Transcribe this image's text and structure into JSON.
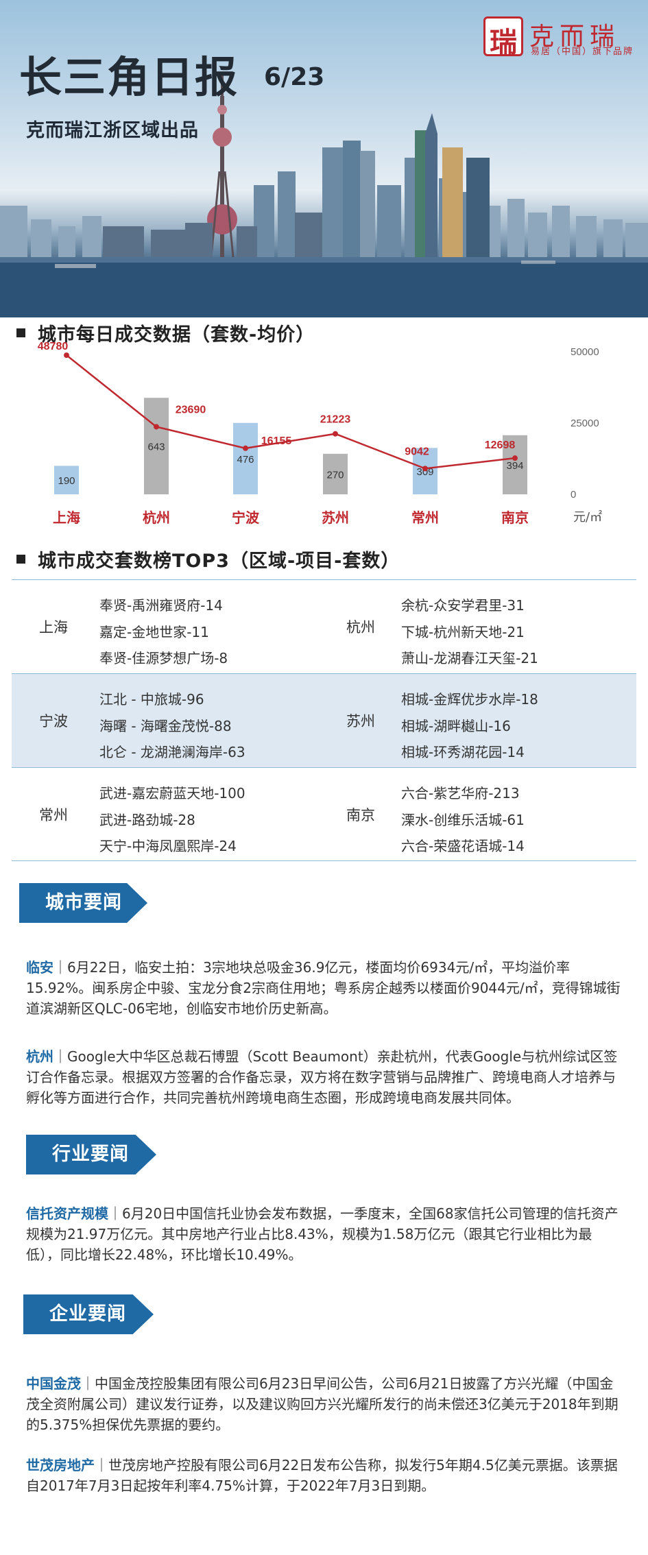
{
  "banner": {
    "title": "长三角日报",
    "date": "6/23",
    "subtitle": "克而瑞江浙区域出品",
    "logo_glyph": "瑞",
    "logo_name": "克而瑞",
    "logo_tag": "易居（中国）旗下品牌"
  },
  "colors": {
    "accent_blue": "#1f6aa5",
    "bar_blue": "#a9cbe8",
    "bar_gray": "#b3b3b3",
    "line_red": "#c0282f"
  },
  "section_daily": {
    "title": "城市每日成交数据（套数-均价）"
  },
  "chart_data": {
    "type": "bar",
    "categories": [
      "上海",
      "杭州",
      "宁波",
      "苏州",
      "常州",
      "南京"
    ],
    "series": [
      {
        "values": [
          190,
          643,
          476,
          270,
          309,
          394
        ]
      },
      {
        "values": [
          48780,
          23690,
          16155,
          21223,
          9042,
          12698
        ]
      }
    ],
    "right_axis": {
      "ticks": [
        "50000",
        "25000",
        "0"
      ],
      "unit": "元/㎡",
      "ylim": [
        0,
        50000
      ]
    },
    "left_ylim": [
      0,
      950
    ]
  },
  "section_top3": {
    "title": "城市成交套数榜TOP3（区域-项目-套数）"
  },
  "top3": [
    {
      "left_city": "上海",
      "left_items": [
        "奉贤-禹洲雍贤府-14",
        "嘉定-金地世家-11",
        "奉贤-佳源梦想广场-8"
      ],
      "right_city": "杭州",
      "right_items": [
        "余杭-众安学君里-31",
        "下城-杭州新天地-21",
        "萧山-龙湖春江天玺-21"
      ]
    },
    {
      "left_city": "宁波",
      "left_items": [
        "江北 - 中旅城-96",
        "海曙 - 海曙金茂悦-88",
        "北仑 - 龙湖滟澜海岸-63"
      ],
      "right_city": "苏州",
      "right_items": [
        "相城-金辉优步水岸-18",
        "相城-湖畔樾山-16",
        "相城-环秀湖花园-14"
      ]
    },
    {
      "left_city": "常州",
      "left_items": [
        "武进-嘉宏蔚蓝天地-100",
        "武进-路劲城-28",
        "天宁-中海凤凰熙岸-24"
      ],
      "right_city": "南京",
      "right_items": [
        "六合-紫艺华府-213",
        "溧水-创维乐活城-61",
        "六合-荣盛花语城-14"
      ]
    }
  ],
  "news": {
    "city": {
      "tag": "城市要闻",
      "items": [
        {
          "keyword": "临安",
          "text": "｜6月22日，临安土拍：3宗地块总吸金36.9亿元，楼面均价6934元/㎡，平均溢价率15.92%。闽系房企中骏、宝龙分食2宗商住用地；粤系房企越秀以楼面价9044元/㎡，竞得锦城街道滨湖新区QLC-06宅地，创临安市地价历史新高。"
        },
        {
          "keyword": "杭州",
          "text": "｜Google大中华区总裁石博盟（Scott Beaumont）亲赴杭州，代表Google与杭州综试区签订合作备忘录。根据双方签署的合作备忘录，双方将在数字营销与品牌推广、跨境电商人才培养与孵化等方面进行合作，共同完善杭州跨境电商生态圈，形成跨境电商发展共同体。"
        }
      ]
    },
    "industry": {
      "tag": "行业要闻",
      "items": [
        {
          "keyword": "信托资产规模",
          "text": "｜6月20日中国信托业协会发布数据，一季度末，全国68家信托公司管理的信托资产规模为21.97万亿元。其中房地产行业占比8.43%，规模为1.58万亿元（跟其它行业相比为最低），同比增长22.48%，环比增长10.49%。"
        }
      ]
    },
    "company": {
      "tag": "企业要闻",
      "items": [
        {
          "keyword": "中国金茂",
          "text": "｜中国金茂控股集团有限公司6月23日早间公告，公司6月21日披露了方兴光耀（中国金茂全资附属公司）建议发行证券，以及建议购回方兴光耀所发行的尚未偿还3亿美元于2018年到期的5.375%担保优先票据的要约。"
        },
        {
          "keyword": "世茂房地产",
          "text": "｜世茂房地产控股有限公司6月22日发布公告称，拟发行5年期4.5亿美元票据。该票据自2017年7月3日起按年利率4.75%计算，于2022年7月3日到期。"
        }
      ]
    }
  }
}
